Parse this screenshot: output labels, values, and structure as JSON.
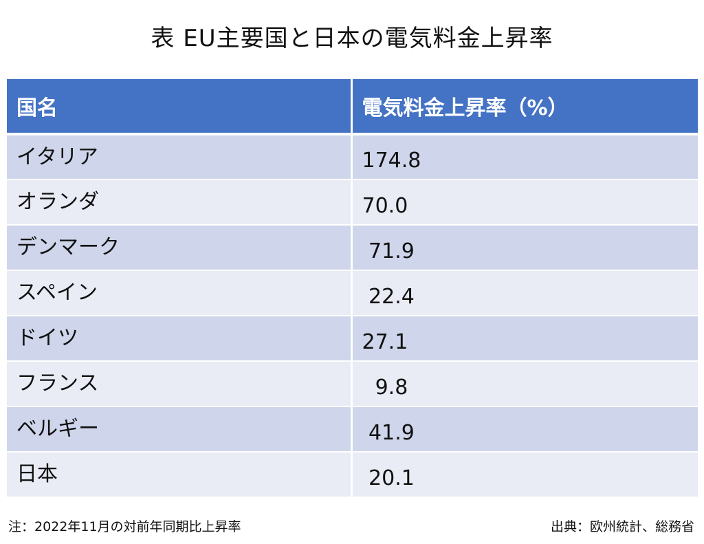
{
  "title": "表 EU主要国と日本の電気料金上昇率",
  "table": {
    "headers": [
      "国名",
      "電気料金上昇率（%）"
    ],
    "rows": [
      {
        "country": "イタリア",
        "rate": "174.8"
      },
      {
        "country": "オランダ",
        "rate": "70.0"
      },
      {
        "country": "デンマーク",
        "rate": " 71.9"
      },
      {
        "country": "スペイン",
        "rate": " 22.4"
      },
      {
        "country": "ドイツ",
        "rate": "27.1"
      },
      {
        "country": "フランス",
        "rate": "  9.8"
      },
      {
        "country": "ベルギー",
        "rate": " 41.9"
      },
      {
        "country": "日本",
        "rate": " 20.1"
      }
    ]
  },
  "footer": {
    "note": "注：2022年11月の対前年同期比上昇率",
    "source": "出典：欧州統計、総務省"
  },
  "colors": {
    "header_bg": "#4472c4",
    "row_odd_bg": "#cfd5ea",
    "row_even_bg": "#e9ebf5"
  }
}
